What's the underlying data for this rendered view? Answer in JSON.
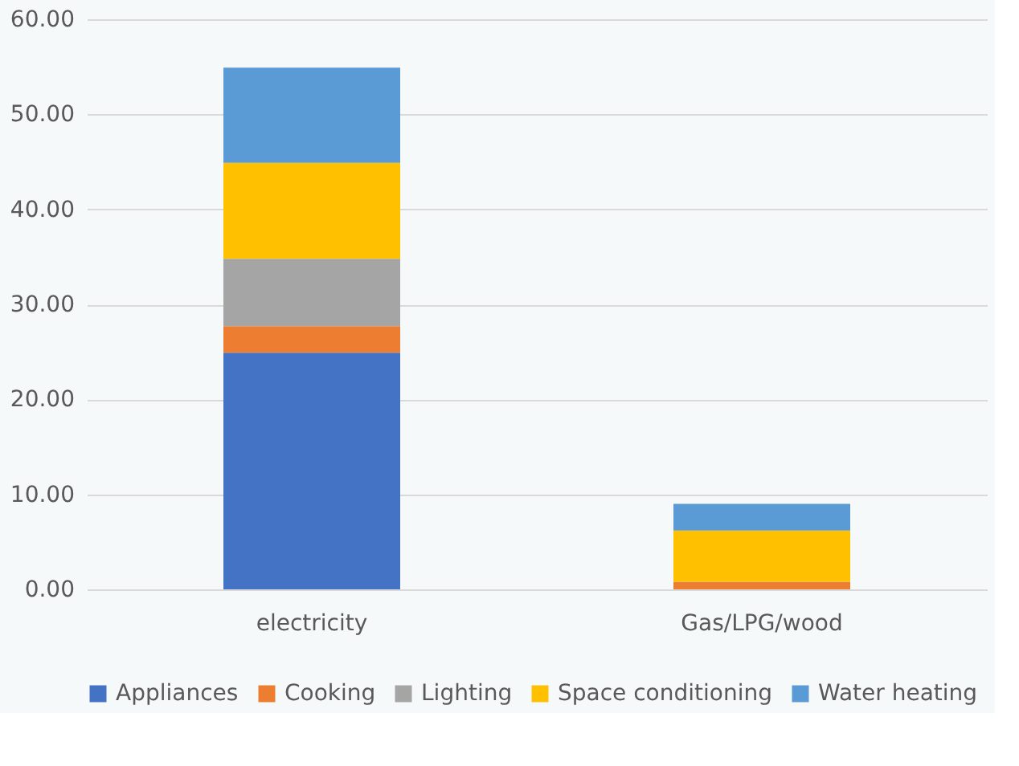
{
  "chart_data": {
    "type": "bar",
    "stacked": true,
    "categories": [
      "electricity",
      "Gas/LPG/wood"
    ],
    "series": [
      {
        "name": "Appliances",
        "color": "#4472c4",
        "values": [
          24.9,
          0
        ]
      },
      {
        "name": "Cooking",
        "color": "#ed7d31",
        "values": [
          2.8,
          0.8
        ]
      },
      {
        "name": "Lighting",
        "color": "#a5a5a5",
        "values": [
          7.1,
          0
        ]
      },
      {
        "name": "Space conditioning",
        "color": "#ffc000",
        "values": [
          10.1,
          5.4
        ]
      },
      {
        "name": "Water heating",
        "color": "#5b9bd5",
        "values": [
          10.0,
          2.8
        ]
      }
    ],
    "ylim": [
      0,
      60
    ],
    "yticks": [
      {
        "value": 0,
        "label": "0.00"
      },
      {
        "value": 10,
        "label": "10.00"
      },
      {
        "value": 20,
        "label": "20.00"
      },
      {
        "value": 30,
        "label": "30.00"
      },
      {
        "value": 40,
        "label": "40.00"
      },
      {
        "value": 50,
        "label": "50.00"
      },
      {
        "value": 60,
        "label": "60.00"
      }
    ],
    "grid": "y",
    "legend": "bottom"
  }
}
